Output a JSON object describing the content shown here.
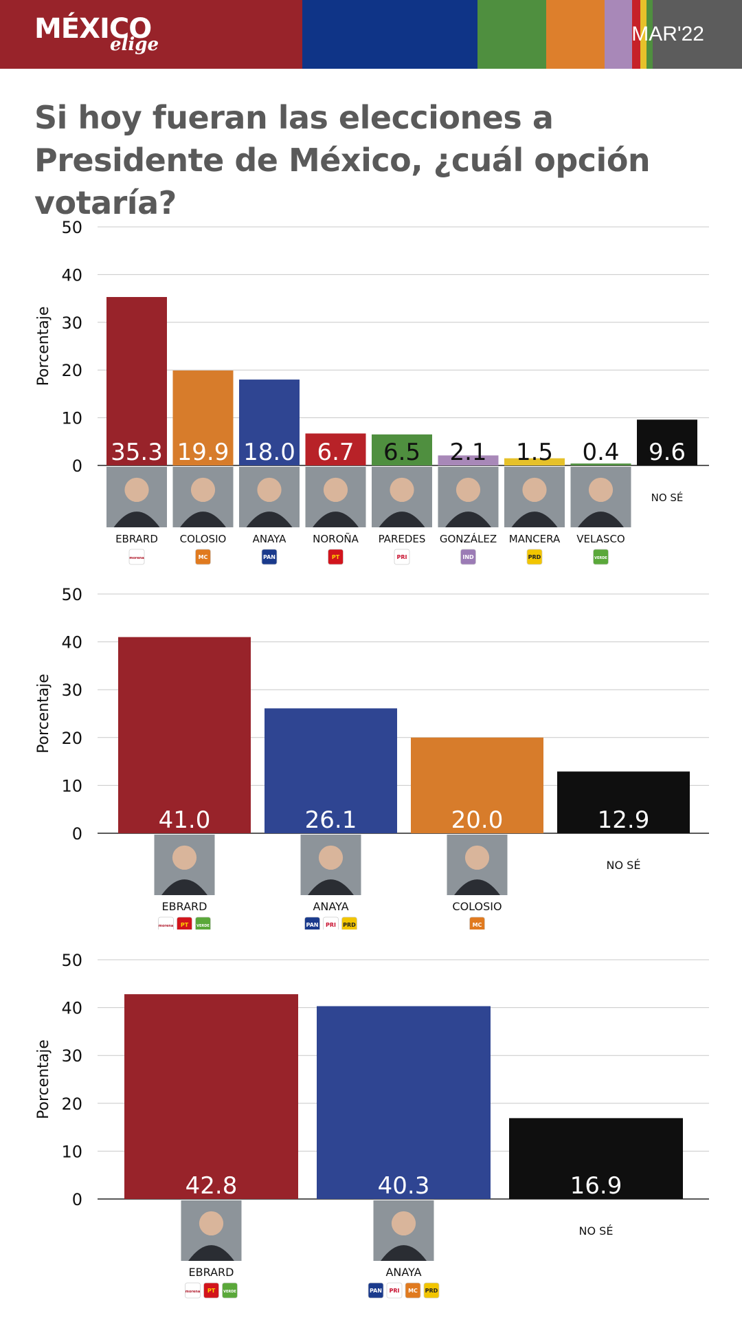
{
  "header": {
    "brand_main": "MÉXICO",
    "brand_sub": "elige",
    "date": "MAR'22",
    "stripe_colors": [
      "#98232a",
      "#0f3487",
      "#4f8f3f",
      "#dd7f2c",
      "#a888b8",
      "#c62128",
      "#e6c12a",
      "#4f8f3f",
      "#5c5c5c"
    ]
  },
  "title": "Si hoy fueran las elecciones a Presidente de México, ¿cuál opción votaría?",
  "chart_data": [
    {
      "type": "bar",
      "ylabel": "Porcentaje",
      "ylim": [
        0,
        50
      ],
      "yticks": [
        0,
        10,
        20,
        30,
        40,
        50
      ],
      "grid": true,
      "categories": [
        "EBRARD",
        "COLOSIO",
        "ANAYA",
        "NOROÑA",
        "PAREDES",
        "GONZÁLEZ",
        "MANCERA",
        "VELASCO",
        "NO SÉ"
      ],
      "values": [
        35.3,
        19.9,
        18.0,
        6.7,
        6.5,
        2.1,
        1.5,
        0.4,
        9.6
      ],
      "colors": [
        "#98232a",
        "#d77c2b",
        "#2f4592",
        "#b82228",
        "#4f8f3f",
        "#a888b8",
        "#e6c12a",
        "#4f8f3f",
        "#0f0f0f"
      ],
      "value_label_colors": [
        "#ffffff",
        "#ffffff",
        "#ffffff",
        "#ffffff",
        "#111111",
        "#111111",
        "#111111",
        "#111111",
        "#ffffff"
      ],
      "party_badges": [
        [
          "MORENA"
        ],
        [
          "MC"
        ],
        [
          "PAN"
        ],
        [
          "PT"
        ],
        [
          "PRI"
        ],
        [
          "IND"
        ],
        [
          "PRD"
        ],
        [
          "VERDE"
        ],
        []
      ]
    },
    {
      "type": "bar",
      "ylabel": "Porcentaje",
      "ylim": [
        0,
        50
      ],
      "yticks": [
        0,
        10,
        20,
        30,
        40,
        50
      ],
      "grid": true,
      "categories": [
        "EBRARD",
        "ANAYA",
        "COLOSIO",
        "NO SÉ"
      ],
      "values": [
        41.0,
        26.1,
        20.0,
        12.9
      ],
      "colors": [
        "#98232a",
        "#2f4592",
        "#d77c2b",
        "#0f0f0f"
      ],
      "value_label_colors": [
        "#ffffff",
        "#ffffff",
        "#ffffff",
        "#ffffff"
      ],
      "party_badges": [
        [
          "MORENA",
          "PT",
          "VERDE"
        ],
        [
          "PAN",
          "PRI",
          "PRD"
        ],
        [
          "MC"
        ],
        []
      ]
    },
    {
      "type": "bar",
      "ylabel": "Porcentaje",
      "ylim": [
        0,
        50
      ],
      "yticks": [
        0,
        10,
        20,
        30,
        40,
        50
      ],
      "grid": true,
      "categories": [
        "EBRARD",
        "ANAYA",
        "NO SÉ"
      ],
      "values": [
        42.8,
        40.3,
        16.9
      ],
      "colors": [
        "#98232a",
        "#2f4592",
        "#0f0f0f"
      ],
      "value_label_colors": [
        "#ffffff",
        "#ffffff",
        "#ffffff"
      ],
      "party_badges": [
        [
          "MORENA",
          "PT",
          "VERDE"
        ],
        [
          "PAN",
          "PRI",
          "MC",
          "PRD"
        ],
        []
      ]
    }
  ],
  "badge_styles": {
    "MORENA": {
      "label": "morena",
      "bg": "#ffffff",
      "fg": "#b0182a"
    },
    "MC": {
      "label": "MC",
      "bg": "#e07a1f",
      "fg": "#ffffff"
    },
    "PAN": {
      "label": "PAN",
      "bg": "#1a3a8c",
      "fg": "#ffffff"
    },
    "PT": {
      "label": "PT",
      "bg": "#d2141c",
      "fg": "#ffd200"
    },
    "PRI": {
      "label": "PRI",
      "bg": "#ffffff",
      "fg": "#c8102e"
    },
    "IND": {
      "label": "IND",
      "bg": "#9b7bb5",
      "fg": "#ffffff"
    },
    "PRD": {
      "label": "PRD",
      "bg": "#f2c500",
      "fg": "#222222"
    },
    "VERDE": {
      "label": "VERDE",
      "bg": "#5aa83a",
      "fg": "#ffffff"
    }
  }
}
